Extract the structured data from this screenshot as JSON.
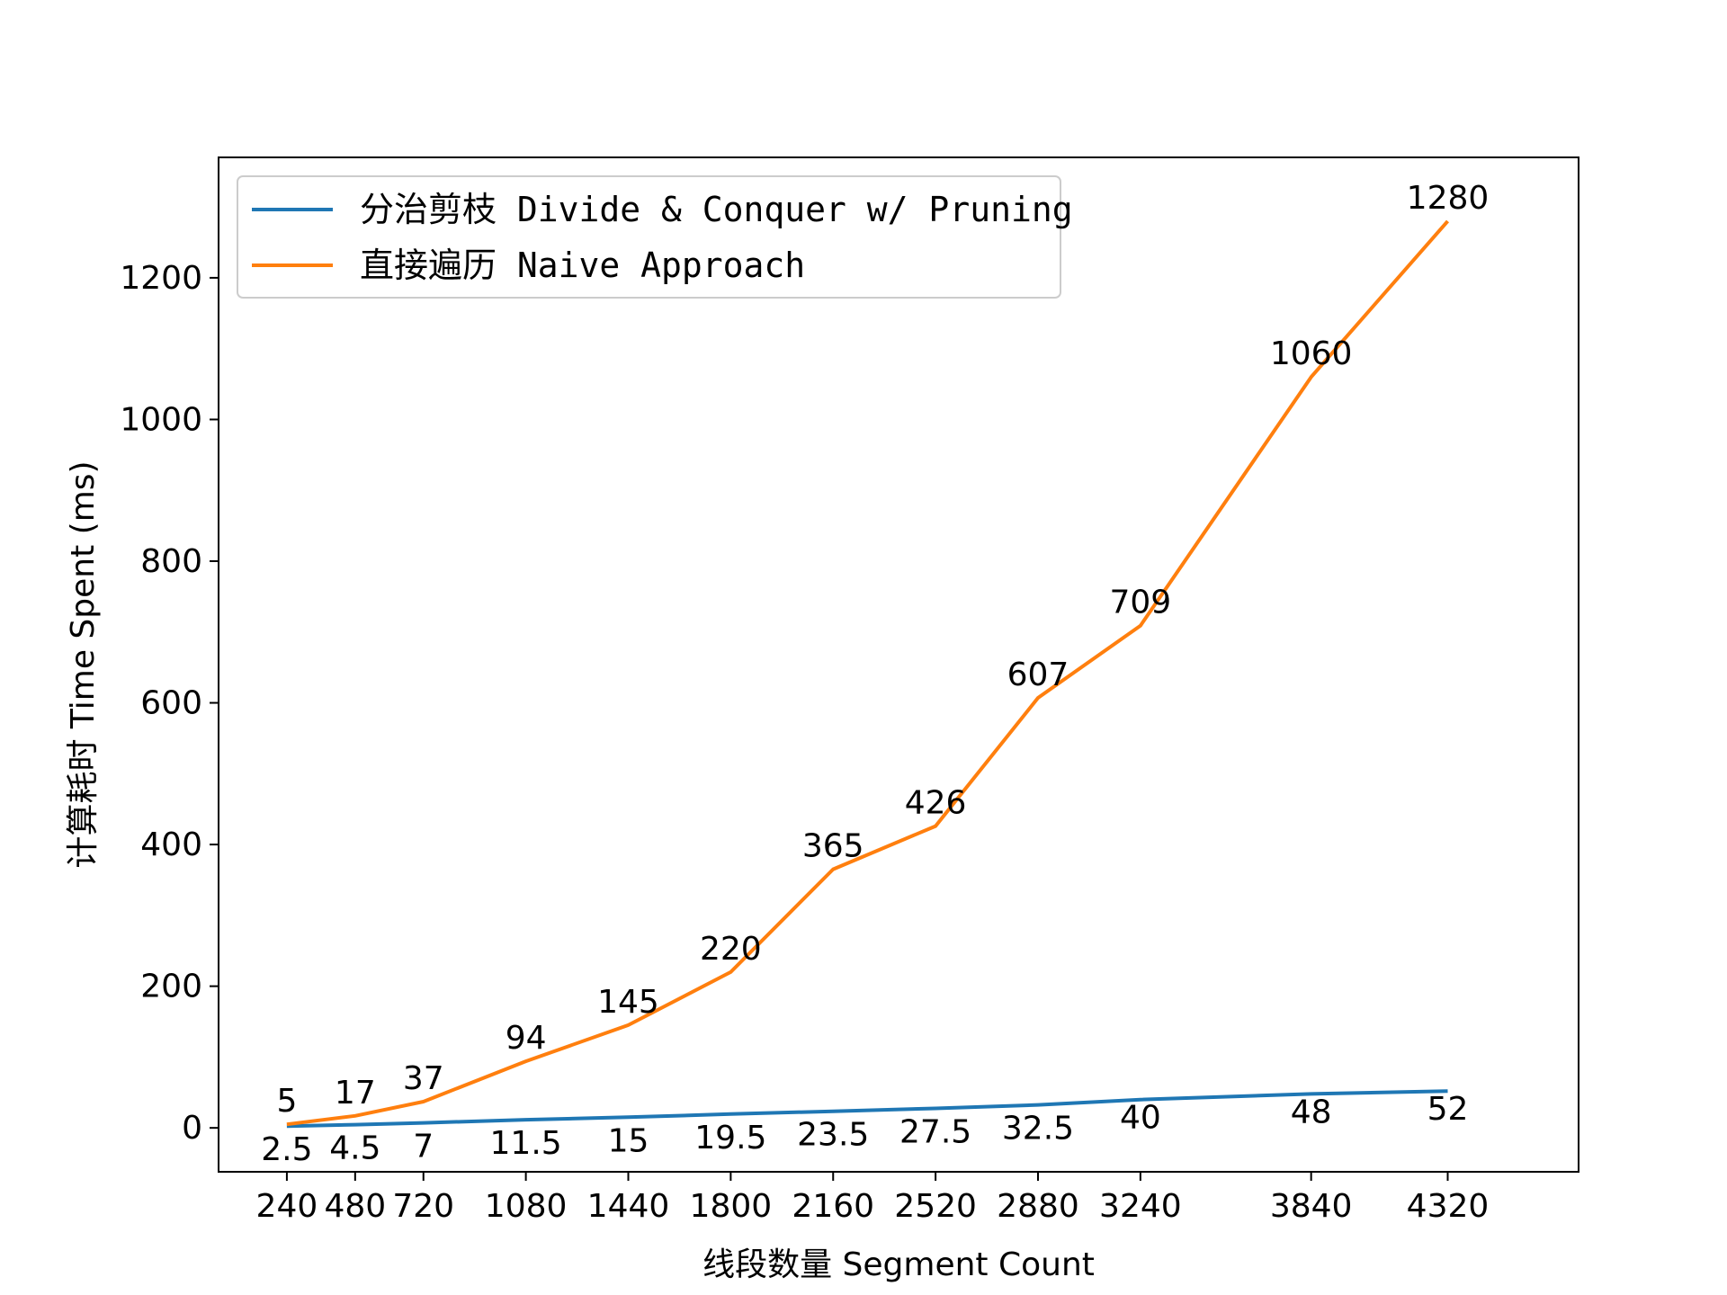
{
  "chart_data": {
    "type": "line",
    "title": "",
    "xlabel": "线段数量 Segment Count",
    "ylabel": "计算耗时 Time Spent (ms)",
    "x": [
      240,
      480,
      720,
      1080,
      1440,
      1800,
      2160,
      2520,
      2880,
      3240,
      3840,
      4320
    ],
    "xticks": [
      "240",
      "480",
      "720",
      "1080",
      "1440",
      "1800",
      "2160",
      "2520",
      "2880",
      "3240",
      "3840",
      "4320"
    ],
    "xlim": [
      0,
      4780
    ],
    "ylim": [
      -62,
      1370
    ],
    "yticks": [
      0,
      200,
      400,
      600,
      800,
      1000,
      1200
    ],
    "grid": false,
    "legend_position": "top-left",
    "series": [
      {
        "name": "分治剪枝 Divide & Conquer w/ Pruning",
        "color": "#1f77b4",
        "values": [
          2.5,
          4.5,
          7,
          11.5,
          15,
          19.5,
          23.5,
          27.5,
          32.5,
          40,
          48,
          52
        ],
        "labels": [
          "2.5",
          "4.5",
          "7",
          "11.5",
          "15",
          "19.5",
          "23.5",
          "27.5",
          "32.5",
          "40",
          "48",
          "52"
        ]
      },
      {
        "name": "直接遍历 Naive Approach",
        "color": "#ff7f0e",
        "values": [
          5,
          17,
          37,
          94,
          145,
          220,
          365,
          426,
          607,
          709,
          1060,
          1280
        ],
        "labels": [
          "5",
          "17",
          "37",
          "94",
          "145",
          "220",
          "365",
          "426",
          "607",
          "709",
          "1060",
          "1280"
        ]
      }
    ]
  }
}
